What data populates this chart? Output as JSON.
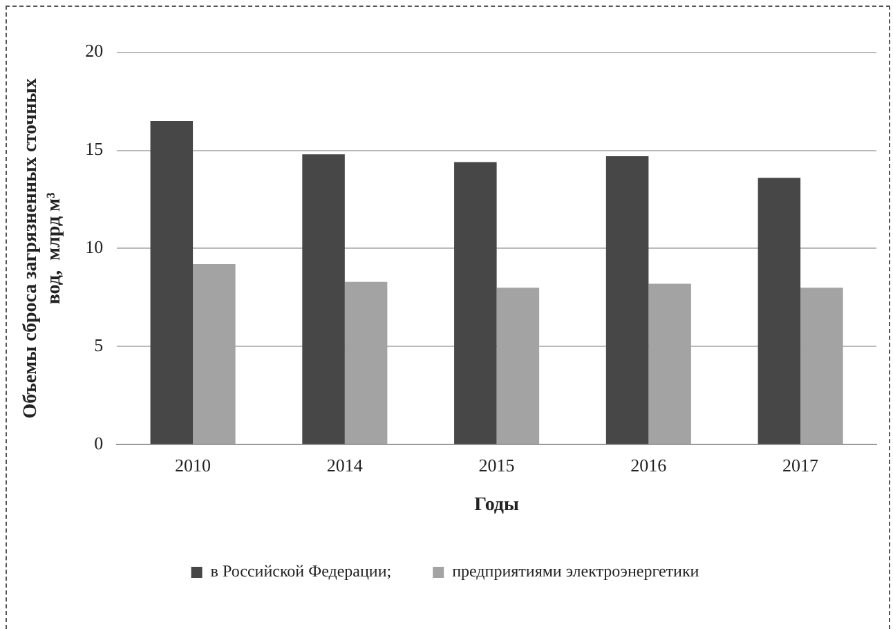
{
  "chart_data": {
    "type": "bar",
    "xlabel": "Годы",
    "ylabel": "Объемы сброса загрязненных сточных вод,  млрд м³",
    "categories": [
      "2010",
      "2014",
      "2015",
      "2016",
      "2017"
    ],
    "series": [
      {
        "name": "в Российской Федерации;",
        "color": "#474747",
        "values": [
          16.5,
          14.8,
          14.4,
          14.7,
          13.6
        ]
      },
      {
        "name": "предприятиями электроэнергетики",
        "color": "#a3a3a3",
        "values": [
          9.2,
          8.3,
          8.0,
          8.2,
          8.0
        ]
      }
    ],
    "ylim": [
      0,
      20
    ],
    "yticks": [
      0,
      5,
      10,
      15,
      20
    ],
    "grid": "y",
    "legend": "bottom"
  }
}
